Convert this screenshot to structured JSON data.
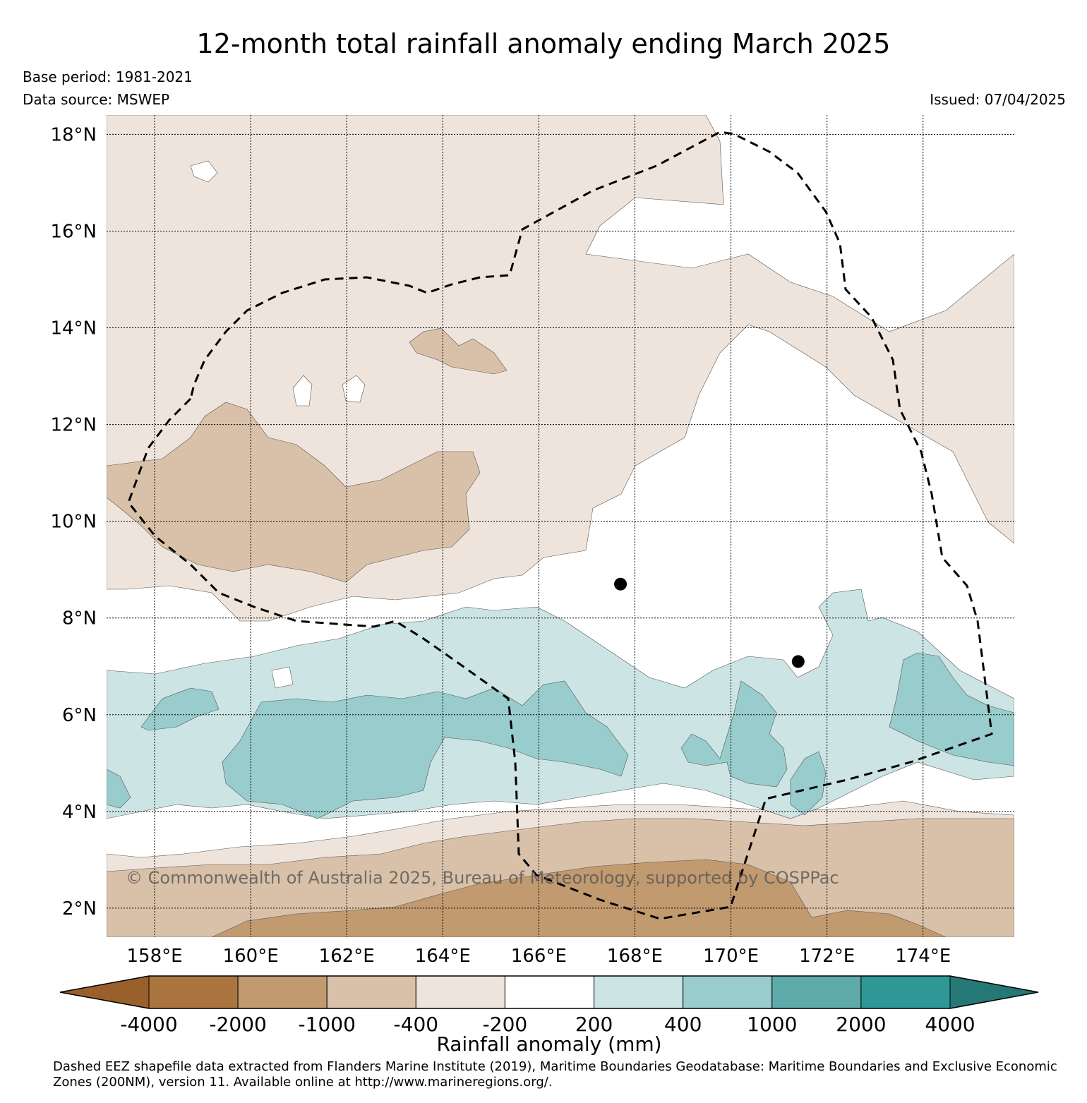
{
  "title": "12-month total rainfall anomaly ending March 2025",
  "base_period": "Base period: 1981-2021",
  "data_source": "Data source: MSWEP",
  "issued": "Issued: 07/04/2025",
  "copyright": "© Commonwealth of Australia 2025, Bureau of Meteorology, supported by COSPPac",
  "map": {
    "lat_range": [
      1.4,
      18.4
    ],
    "lon_range": [
      157.0,
      175.9
    ],
    "lat_ticks": [
      "18°N",
      "16°N",
      "14°N",
      "12°N",
      "10°N",
      "8°N",
      "6°N",
      "4°N",
      "2°N"
    ],
    "lon_ticks": [
      "158°E",
      "160°E",
      "162°E",
      "164°E",
      "166°E",
      "168°E",
      "170°E",
      "172°E",
      "174°E"
    ],
    "gridlines": true,
    "eez_boundary": "dashed black line",
    "markers": [
      {
        "lon": 167.7,
        "lat": 8.7
      },
      {
        "lon": 171.4,
        "lat": 7.1
      }
    ]
  },
  "colorbar": {
    "label": "Rainfall anomaly (mm)",
    "tick_labels": [
      "-4000",
      "-2000",
      "-1000",
      "-400",
      "-200",
      "200",
      "400",
      "1000",
      "2000",
      "4000"
    ],
    "colors": [
      "#99602c",
      "#ab7540",
      "#c19a70",
      "#d9c1a9",
      "#efe4db",
      "#ffffff",
      "#cce4e4",
      "#99cccc",
      "#5eaaaa",
      "#2e9896",
      "#247875"
    ]
  },
  "footnote": "Dashed EEZ shapefile data extracted from Flanders Marine Institute (2019), Maritime Boundaries Geodatabase: Maritime Boundaries and Exclusive Economic Zones (200NM), version 11. Available online at http://www.marineregions.org/."
}
